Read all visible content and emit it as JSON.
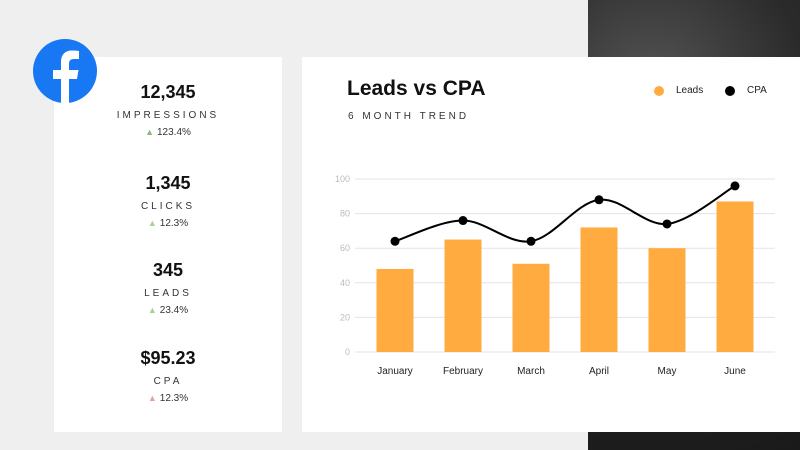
{
  "metrics": [
    {
      "value": "12,345",
      "label": "IMPRESSIONS",
      "change": "123.4%",
      "direction": "up",
      "color": "#8cb77a"
    },
    {
      "value": "1,345",
      "label": "CLICKS",
      "change": "12.3%",
      "direction": "up",
      "color": "#a9cf98"
    },
    {
      "value": "345",
      "label": "LEADS",
      "change": "23.4%",
      "direction": "up",
      "color": "#a9cf98"
    },
    {
      "value": "$95.23",
      "label": "CPA",
      "change": "12.3%",
      "direction": "up",
      "color": "#e3a3a0"
    }
  ],
  "icons": {
    "logo": "facebook-logo-icon",
    "trend": "triangle-up-icon"
  },
  "colors": {
    "leads": "#ffab40",
    "cpa": "#000000",
    "facebook": "#1877f2"
  },
  "chart_data": {
    "type": "bar",
    "title": "Leads vs CPA",
    "subtitle": "6 MONTH TREND",
    "categories": [
      "January",
      "February",
      "March",
      "April",
      "May",
      "June"
    ],
    "series": [
      {
        "name": "Leads",
        "type": "bar",
        "values": [
          48,
          65,
          51,
          72,
          60,
          87
        ]
      },
      {
        "name": "CPA",
        "type": "line",
        "smooth": true,
        "values": [
          64,
          76,
          64,
          88,
          74,
          96
        ]
      }
    ],
    "ylim": [
      0,
      100
    ],
    "yticks": [
      0,
      20,
      40,
      60,
      80,
      100
    ],
    "grid": true,
    "legend": "top-right"
  }
}
